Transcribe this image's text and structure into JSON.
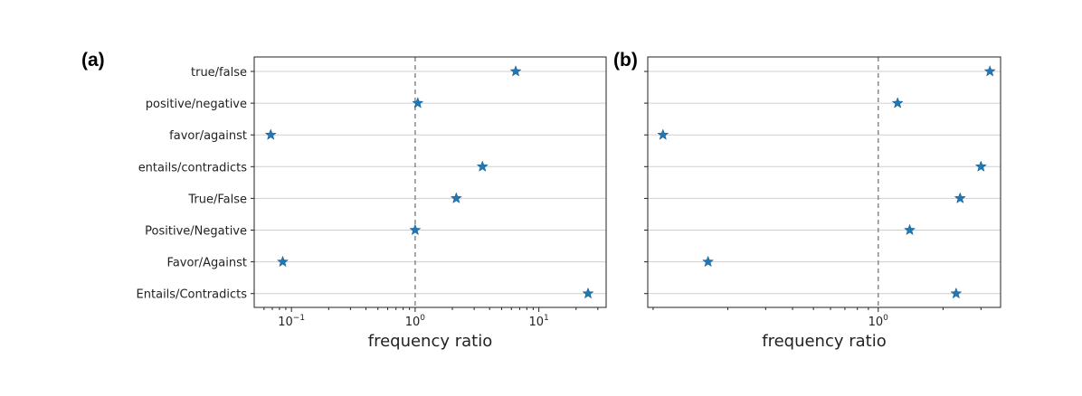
{
  "chart_data": [
    {
      "type": "scatter",
      "panel_label": "(a)",
      "xlabel": "frequency ratio",
      "xscale": "log",
      "xlim": [
        0.05,
        35
      ],
      "ticks": [
        {
          "value": 0.1,
          "base": "10",
          "exp": "−1"
        },
        {
          "value": 1,
          "base": "10",
          "exp": "0"
        },
        {
          "value": 10,
          "base": "10",
          "exp": "1"
        }
      ],
      "reference_line": 1,
      "categories": [
        "true/false",
        "positive/negative",
        "favor/against",
        "entails/contradicts",
        "True/False",
        "Positive/Negative",
        "Favor/Against",
        "Entails/Contradicts"
      ],
      "values": [
        6.5,
        1.05,
        0.068,
        3.5,
        2.15,
        1.0,
        0.085,
        25
      ],
      "marker": "star",
      "color": "#1f77b4",
      "grid": "horizontal"
    },
    {
      "type": "scatter",
      "panel_label": "(b)",
      "xlabel": "frequency ratio",
      "xscale": "log",
      "xlim": [
        0.085,
        3.7
      ],
      "ticks": [
        {
          "value": 1,
          "base": "10",
          "exp": "0"
        }
      ],
      "reference_line": 1,
      "categories": [
        "true/false",
        "positive/negative",
        "favor/against",
        "entails/contradicts",
        "True/False",
        "Positive/Negative",
        "Favor/Against",
        "Entails/Contradicts"
      ],
      "values": [
        3.3,
        1.23,
        0.1,
        3.0,
        2.4,
        1.4,
        0.162,
        2.3
      ],
      "marker": "star",
      "color": "#1f77b4",
      "grid": "horizontal"
    }
  ]
}
